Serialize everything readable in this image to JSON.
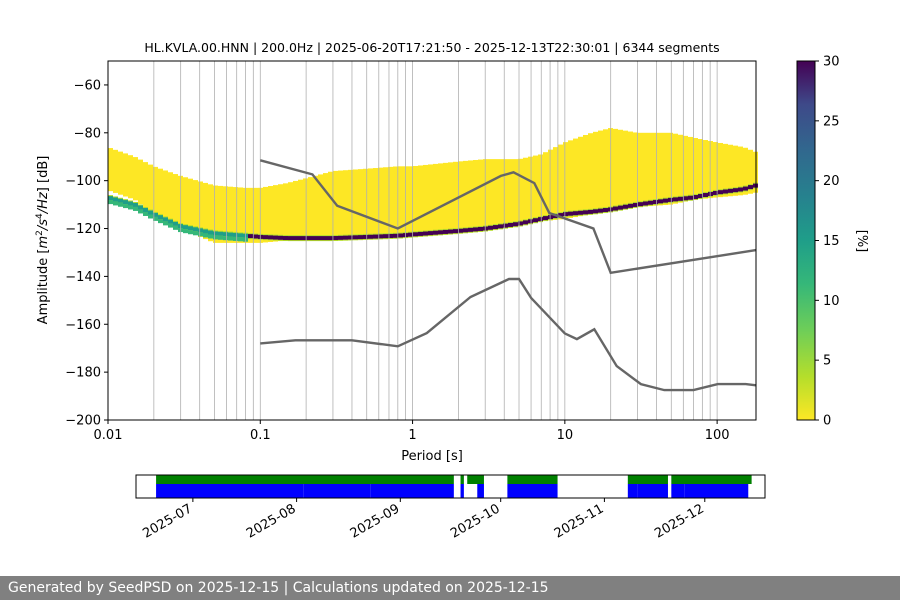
{
  "title": "HL.KVLA.00.HNN | 200.0Hz | 2025-06-20T17:21:50 - 2025-12-13T22:30:01 | 6344 segments",
  "footer": "Generated by SeedPSD on 2025-12-15 | Calculations updated on 2025-12-15",
  "colors": {
    "model_line": "#666666",
    "grid": "#b0b0b0",
    "coverage_data": "#0000ff",
    "coverage_gaps": "#008000"
  },
  "chart_data": [
    {
      "type": "heatmap",
      "xlabel": "Period [s]",
      "ylabel_parts": [
        "Amplitude [",
        "m",
        "2",
        "/",
        "s",
        "4",
        "/",
        "Hz",
        "] [dB]"
      ],
      "xscale": "log",
      "xlim": [
        0.01,
        180
      ],
      "ylim": [
        -200,
        -50
      ],
      "x_ticks": [
        {
          "value": 0.01,
          "label": "0.01"
        },
        {
          "value": 0.1,
          "label": "0.1"
        },
        {
          "value": 1,
          "label": "1"
        },
        {
          "value": 10,
          "label": "10"
        },
        {
          "value": 100,
          "label": "100"
        }
      ],
      "y_ticks": [
        {
          "value": -60,
          "label": "−60"
        },
        {
          "value": -80,
          "label": "−80"
        },
        {
          "value": -100,
          "label": "−100"
        },
        {
          "value": -120,
          "label": "−120"
        },
        {
          "value": -140,
          "label": "−140"
        },
        {
          "value": -160,
          "label": "−160"
        },
        {
          "value": -180,
          "label": "−180"
        },
        {
          "value": -200,
          "label": "−200"
        }
      ],
      "grid": true,
      "colorbar": {
        "label": "[%]",
        "range": [
          0,
          30
        ],
        "ticks": [
          {
            "value": 0,
            "label": "0"
          },
          {
            "value": 5,
            "label": "5"
          },
          {
            "value": 10,
            "label": "10"
          },
          {
            "value": 15,
            "label": "15"
          },
          {
            "value": 20,
            "label": "20"
          },
          {
            "value": 25,
            "label": "25"
          },
          {
            "value": 30,
            "label": "30"
          }
        ],
        "colormap": "viridis_r"
      },
      "psd_band": {
        "period": [
          0.01,
          0.015,
          0.02,
          0.03,
          0.05,
          0.08,
          0.1,
          0.15,
          0.2,
          0.3,
          0.5,
          0.8,
          1,
          2,
          3,
          5,
          7,
          10,
          15,
          20,
          30,
          50,
          70,
          100,
          150,
          180
        ],
        "upper_db": [
          -86,
          -90,
          -94,
          -98,
          -102,
          -103,
          -103,
          -101,
          -99,
          -96,
          -95,
          -94,
          -94,
          -92,
          -91,
          -91,
          -89,
          -84,
          -80,
          -78,
          -80,
          -80,
          -82,
          -84,
          -86,
          -88
        ],
        "lower_db": [
          -104,
          -108,
          -114,
          -120,
          -126,
          -126,
          -126,
          -125,
          -124,
          -124,
          -123,
          -122,
          -122,
          -120,
          -119,
          -118,
          -117,
          -116,
          -114,
          -113,
          -111,
          -110,
          -108,
          -107,
          -106,
          -105
        ],
        "mode_db": [
          -107,
          -110,
          -114,
          -119,
          -122,
          -123,
          -123.5,
          -124,
          -124,
          -124,
          -123.5,
          -123,
          -122.5,
          -121,
          -120,
          -118,
          -116,
          -114,
          -113,
          -112,
          -110,
          -108,
          -107,
          -105,
          -103.5,
          -102
        ]
      },
      "noise_models": [
        {
          "name": "high",
          "period": [
            0.1,
            0.22,
            0.32,
            0.8,
            3.8,
            4.6,
            6.3,
            7.9,
            15.4,
            20,
            180
          ],
          "db": [
            -91.5,
            -97.4,
            -110.5,
            -120,
            -98,
            -96.5,
            -101,
            -113.5,
            -120,
            -138.5,
            -129
          ]
        },
        {
          "name": "low",
          "period": [
            0.1,
            0.17,
            0.4,
            0.8,
            1.24,
            2.4,
            4.3,
            5,
            6,
            10,
            12,
            15.6,
            21.9,
            31.6,
            45,
            70,
            101,
            154,
            180
          ],
          "db": [
            -168,
            -166.7,
            -166.7,
            -169.2,
            -163.7,
            -148.6,
            -141.1,
            -141.1,
            -149,
            -163.8,
            -166.2,
            -162.1,
            -177.5,
            -185,
            -187.5,
            -187.5,
            -185,
            -185,
            -185.5
          ]
        }
      ]
    },
    {
      "type": "timeline",
      "x_ticks": [
        {
          "date": "2025-07-01",
          "label": "2025-07"
        },
        {
          "date": "2025-08-01",
          "label": "2025-08"
        },
        {
          "date": "2025-09-01",
          "label": "2025-09"
        },
        {
          "date": "2025-10-01",
          "label": "2025-10"
        },
        {
          "date": "2025-11-01",
          "label": "2025-11"
        },
        {
          "date": "2025-12-01",
          "label": "2025-12"
        }
      ],
      "xlim": [
        "2025-06-14",
        "2025-12-19"
      ],
      "data_segments": [
        [
          "2025-06-20",
          "2025-08-02"
        ],
        [
          "2025-08-03",
          "2025-08-22"
        ],
        [
          "2025-08-23",
          "2025-09-16"
        ],
        [
          "2025-09-19",
          "2025-09-19"
        ],
        [
          "2025-09-24",
          "2025-09-25"
        ],
        [
          "2025-10-03",
          "2025-10-17"
        ],
        [
          "2025-11-08",
          "2025-11-10"
        ],
        [
          "2025-11-11",
          "2025-11-19"
        ],
        [
          "2025-11-21",
          "2025-11-24"
        ],
        [
          "2025-11-25",
          "2025-12-13"
        ]
      ],
      "gap_segments": [
        [
          "2025-06-20",
          "2025-09-16"
        ],
        [
          "2025-09-19",
          "2025-09-19"
        ],
        [
          "2025-09-21",
          "2025-09-25"
        ],
        [
          "2025-10-03",
          "2025-10-17"
        ],
        [
          "2025-11-08",
          "2025-11-19"
        ],
        [
          "2025-11-21",
          "2025-12-14"
        ]
      ]
    }
  ]
}
